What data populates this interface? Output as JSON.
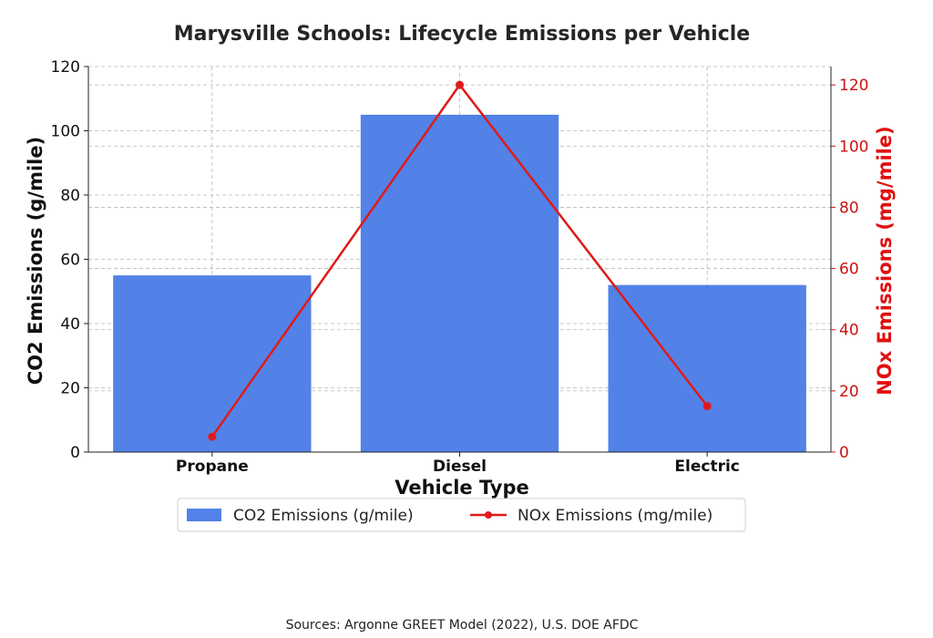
{
  "chart_data": {
    "type": "bar",
    "title": "Marysville Schools: Lifecycle Emissions per Vehicle",
    "xlabel": "Vehicle Type",
    "ylabel": "CO2 Emissions (g/mile)",
    "y2label": "NOx Emissions (mg/mile)",
    "categories": [
      "Propane",
      "Diesel",
      "Electric"
    ],
    "series": [
      {
        "name": "CO2 Emissions (g/mile)",
        "type": "bar",
        "axis": "left",
        "color": "#5282e8",
        "values": [
          55,
          105,
          52
        ]
      },
      {
        "name": "NOx Emissions (mg/mile)",
        "type": "line",
        "axis": "right",
        "color": "#e01a1a",
        "values": [
          5,
          120,
          15
        ]
      }
    ],
    "ylim": [
      0,
      120
    ],
    "y2lim": [
      0,
      126
    ],
    "yticks": [
      0,
      20,
      40,
      60,
      80,
      100,
      120
    ],
    "y2ticks": [
      0,
      20,
      40,
      60,
      80,
      100,
      120
    ],
    "grid": true,
    "legend_position": "bottom-center",
    "source": "Sources: Argonne GREET Model (2022), U.S. DOE AFDC"
  }
}
